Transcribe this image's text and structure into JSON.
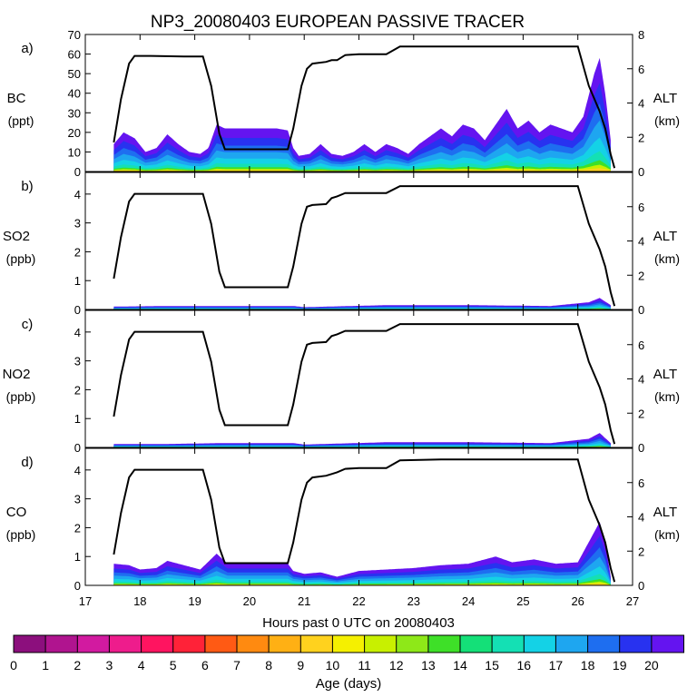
{
  "title": "NP3_20080403 EUROPEAN PASSIVE TRACER",
  "xlabel": "Hours past 0 UTC on 20080403",
  "x_ticks": [
    "17",
    "18",
    "19",
    "20",
    "21",
    "22",
    "23",
    "24",
    "25",
    "26",
    "27"
  ],
  "colorbar": {
    "label": "Age (days)",
    "ticks": [
      "0",
      "1",
      "2",
      "3",
      "4",
      "5",
      "6",
      "7",
      "8",
      "9",
      "10",
      "11",
      "12",
      "13",
      "14",
      "15",
      "16",
      "17",
      "18",
      "19",
      "20"
    ],
    "colors": [
      "#8c0f7d",
      "#b0148f",
      "#d21aa0",
      "#ee1c8c",
      "#ff1460",
      "#ff2238",
      "#ff5a14",
      "#ff8a10",
      "#ffb014",
      "#ffd21e",
      "#f5f000",
      "#c8f000",
      "#8ee818",
      "#3ee028",
      "#14e078",
      "#14e0b4",
      "#14d2e6",
      "#1ea6f0",
      "#1e6ef0",
      "#2832f0",
      "#6414f0"
    ]
  },
  "chart_data": [
    {
      "type": "area",
      "panel": "a)",
      "species": "BC",
      "unit": "(ppt)",
      "ylim": [
        0,
        70
      ],
      "yticks": [
        "0",
        "10",
        "20",
        "30",
        "40",
        "50",
        "60",
        "70"
      ],
      "right_label": "ALT",
      "right_unit": "(km)",
      "right_ylim": [
        0,
        8
      ],
      "right_ticks": [
        "0",
        "2",
        "4",
        "6",
        "8"
      ],
      "altitude_km": [
        [
          17.52,
          1.7
        ],
        [
          17.65,
          4.2
        ],
        [
          17.8,
          6.3
        ],
        [
          17.9,
          6.75
        ],
        [
          18.2,
          6.75
        ],
        [
          18.8,
          6.72
        ],
        [
          19.15,
          6.72
        ],
        [
          19.3,
          5.0
        ],
        [
          19.45,
          2.2
        ],
        [
          19.55,
          1.3
        ],
        [
          20.7,
          1.3
        ],
        [
          20.8,
          2.5
        ],
        [
          20.95,
          5.0
        ],
        [
          21.05,
          6.0
        ],
        [
          21.15,
          6.3
        ],
        [
          21.4,
          6.4
        ],
        [
          21.5,
          6.5
        ],
        [
          21.6,
          6.5
        ],
        [
          21.75,
          6.8
        ],
        [
          22.0,
          6.85
        ],
        [
          22.5,
          6.85
        ],
        [
          22.75,
          7.3
        ],
        [
          23.5,
          7.3
        ],
        [
          26.0,
          7.3
        ],
        [
          26.2,
          5.0
        ],
        [
          26.4,
          3.5
        ],
        [
          26.5,
          2.5
        ],
        [
          26.6,
          1.0
        ],
        [
          26.67,
          0.2
        ]
      ],
      "bc_envelope": [
        [
          17.52,
          14
        ],
        [
          17.7,
          20
        ],
        [
          17.9,
          17
        ],
        [
          18.1,
          10
        ],
        [
          18.3,
          12
        ],
        [
          18.5,
          19
        ],
        [
          18.7,
          14
        ],
        [
          18.9,
          10
        ],
        [
          19.1,
          9
        ],
        [
          19.25,
          12
        ],
        [
          19.4,
          24
        ],
        [
          19.55,
          22
        ],
        [
          20.0,
          22
        ],
        [
          20.5,
          22
        ],
        [
          20.7,
          21
        ],
        [
          20.8,
          12
        ],
        [
          20.9,
          8
        ],
        [
          21.1,
          9
        ],
        [
          21.3,
          14
        ],
        [
          21.5,
          9
        ],
        [
          21.7,
          8
        ],
        [
          21.9,
          10
        ],
        [
          22.1,
          14
        ],
        [
          22.3,
          10
        ],
        [
          22.5,
          14
        ],
        [
          22.7,
          12
        ],
        [
          22.9,
          9
        ],
        [
          23.1,
          14
        ],
        [
          23.3,
          18
        ],
        [
          23.5,
          22
        ],
        [
          23.7,
          18
        ],
        [
          23.9,
          24
        ],
        [
          24.1,
          22
        ],
        [
          24.3,
          16
        ],
        [
          24.5,
          24
        ],
        [
          24.7,
          32
        ],
        [
          24.9,
          22
        ],
        [
          25.1,
          26
        ],
        [
          25.3,
          20
        ],
        [
          25.5,
          24
        ],
        [
          25.7,
          22
        ],
        [
          25.9,
          20
        ],
        [
          26.1,
          28
        ],
        [
          26.3,
          50
        ],
        [
          26.4,
          58
        ],
        [
          26.5,
          40
        ],
        [
          26.6,
          16
        ]
      ]
    },
    {
      "type": "area",
      "panel": "b)",
      "species": "SO2",
      "unit": "(ppb)",
      "ylim": [
        0,
        4.75
      ],
      "yticks": [
        "0",
        "1",
        "2",
        "3",
        "4"
      ],
      "right_label": "ALT",
      "right_unit": "(km)",
      "right_ylim": [
        0,
        8
      ],
      "right_ticks": [
        "0",
        "2",
        "4",
        "6"
      ],
      "altitude_km": [
        [
          17.52,
          1.8
        ],
        [
          17.65,
          4.2
        ],
        [
          17.8,
          6.3
        ],
        [
          17.9,
          6.75
        ],
        [
          18.2,
          6.75
        ],
        [
          18.8,
          6.75
        ],
        [
          19.15,
          6.75
        ],
        [
          19.3,
          5.0
        ],
        [
          19.45,
          2.2
        ],
        [
          19.55,
          1.3
        ],
        [
          20.7,
          1.3
        ],
        [
          20.8,
          2.5
        ],
        [
          20.95,
          5.0
        ],
        [
          21.05,
          6.0
        ],
        [
          21.15,
          6.1
        ],
        [
          21.4,
          6.15
        ],
        [
          21.5,
          6.5
        ],
        [
          21.6,
          6.6
        ],
        [
          21.75,
          6.8
        ],
        [
          22.0,
          6.8
        ],
        [
          22.5,
          6.8
        ],
        [
          22.75,
          7.2
        ],
        [
          23.5,
          7.2
        ],
        [
          26.0,
          7.2
        ],
        [
          26.2,
          5.0
        ],
        [
          26.4,
          3.5
        ],
        [
          26.5,
          2.5
        ],
        [
          26.6,
          1.0
        ],
        [
          26.67,
          0.2
        ]
      ],
      "envelope": [
        [
          17.52,
          0.1
        ],
        [
          18.5,
          0.12
        ],
        [
          19.5,
          0.12
        ],
        [
          20.8,
          0.12
        ],
        [
          21.0,
          0.08
        ],
        [
          22.5,
          0.15
        ],
        [
          24.0,
          0.15
        ],
        [
          25.5,
          0.12
        ],
        [
          26.2,
          0.25
        ],
        [
          26.4,
          0.4
        ],
        [
          26.6,
          0.15
        ]
      ]
    },
    {
      "type": "area",
      "panel": "c)",
      "species": "NO2",
      "unit": "(ppb)",
      "ylim": [
        0,
        4.75
      ],
      "yticks": [
        "0",
        "1",
        "2",
        "3",
        "4"
      ],
      "right_label": "ALT",
      "right_unit": "(km)",
      "right_ylim": [
        0,
        8
      ],
      "right_ticks": [
        "0",
        "2",
        "4",
        "6"
      ],
      "altitude_km": [
        [
          17.52,
          1.8
        ],
        [
          17.65,
          4.2
        ],
        [
          17.8,
          6.3
        ],
        [
          17.9,
          6.75
        ],
        [
          18.2,
          6.75
        ],
        [
          18.8,
          6.75
        ],
        [
          19.15,
          6.75
        ],
        [
          19.3,
          5.0
        ],
        [
          19.45,
          2.2
        ],
        [
          19.55,
          1.3
        ],
        [
          20.7,
          1.3
        ],
        [
          20.8,
          2.5
        ],
        [
          20.95,
          5.0
        ],
        [
          21.05,
          6.0
        ],
        [
          21.15,
          6.1
        ],
        [
          21.4,
          6.15
        ],
        [
          21.5,
          6.5
        ],
        [
          21.6,
          6.6
        ],
        [
          21.75,
          6.8
        ],
        [
          22.0,
          6.8
        ],
        [
          22.5,
          6.8
        ],
        [
          22.75,
          7.2
        ],
        [
          23.5,
          7.2
        ],
        [
          26.0,
          7.2
        ],
        [
          26.2,
          5.0
        ],
        [
          26.4,
          3.5
        ],
        [
          26.5,
          2.5
        ],
        [
          26.6,
          1.0
        ],
        [
          26.67,
          0.2
        ]
      ],
      "envelope": [
        [
          17.52,
          0.12
        ],
        [
          18.5,
          0.12
        ],
        [
          19.5,
          0.15
        ],
        [
          20.8,
          0.15
        ],
        [
          21.0,
          0.1
        ],
        [
          22.5,
          0.18
        ],
        [
          24.0,
          0.18
        ],
        [
          25.5,
          0.15
        ],
        [
          26.2,
          0.3
        ],
        [
          26.4,
          0.5
        ],
        [
          26.6,
          0.15
        ]
      ]
    },
    {
      "type": "area",
      "panel": "d)",
      "species": "CO",
      "unit": "(ppb)",
      "ylim": [
        0,
        4.75
      ],
      "yticks": [
        "0",
        "1",
        "2",
        "3",
        "4"
      ],
      "right_label": "ALT",
      "right_unit": "(km)",
      "right_ylim": [
        0,
        8
      ],
      "right_ticks": [
        "0",
        "2",
        "4",
        "6"
      ],
      "altitude_km": [
        [
          17.52,
          1.8
        ],
        [
          17.65,
          4.2
        ],
        [
          17.8,
          6.3
        ],
        [
          17.9,
          6.75
        ],
        [
          18.2,
          6.75
        ],
        [
          18.8,
          6.75
        ],
        [
          19.15,
          6.75
        ],
        [
          19.3,
          5.0
        ],
        [
          19.45,
          2.2
        ],
        [
          19.55,
          1.3
        ],
        [
          20.7,
          1.3
        ],
        [
          20.8,
          2.5
        ],
        [
          20.95,
          5.0
        ],
        [
          21.05,
          6.0
        ],
        [
          21.15,
          6.3
        ],
        [
          21.4,
          6.4
        ],
        [
          21.5,
          6.5
        ],
        [
          21.6,
          6.6
        ],
        [
          21.75,
          6.8
        ],
        [
          22.0,
          6.85
        ],
        [
          22.5,
          6.85
        ],
        [
          22.75,
          7.3
        ],
        [
          23.5,
          7.35
        ],
        [
          26.0,
          7.35
        ],
        [
          26.2,
          5.0
        ],
        [
          26.4,
          3.5
        ],
        [
          26.5,
          2.5
        ],
        [
          26.6,
          1.0
        ],
        [
          26.67,
          0.2
        ]
      ],
      "envelope": [
        [
          17.52,
          0.75
        ],
        [
          17.8,
          0.7
        ],
        [
          18.0,
          0.55
        ],
        [
          18.3,
          0.6
        ],
        [
          18.5,
          0.85
        ],
        [
          18.8,
          0.7
        ],
        [
          19.1,
          0.55
        ],
        [
          19.4,
          1.1
        ],
        [
          19.6,
          0.75
        ],
        [
          20.7,
          0.75
        ],
        [
          20.8,
          0.5
        ],
        [
          21.0,
          0.4
        ],
        [
          21.3,
          0.45
        ],
        [
          21.6,
          0.3
        ],
        [
          22.0,
          0.5
        ],
        [
          22.5,
          0.55
        ],
        [
          23.0,
          0.6
        ],
        [
          23.5,
          0.7
        ],
        [
          24.0,
          0.75
        ],
        [
          24.5,
          1.0
        ],
        [
          24.8,
          0.8
        ],
        [
          25.2,
          0.9
        ],
        [
          25.6,
          0.75
        ],
        [
          26.0,
          0.8
        ],
        [
          26.2,
          1.5
        ],
        [
          26.4,
          2.2
        ],
        [
          26.5,
          1.5
        ],
        [
          26.6,
          0.3
        ]
      ]
    }
  ]
}
